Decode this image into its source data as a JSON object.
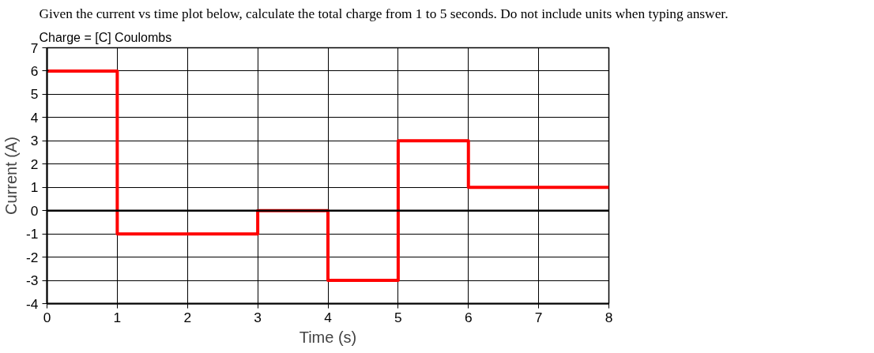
{
  "chart_data": {
    "type": "step",
    "title": "Given the current vs time plot below, calculate the total charge from 1 to 5 seconds. Do not include units when typing answer.",
    "subtitle": "Charge = [C] Coulombs",
    "xlabel": "Time (s)",
    "ylabel": "Current (A)",
    "x": [
      0,
      1,
      3,
      4,
      5,
      6,
      8
    ],
    "series": [
      {
        "color": "#ff0000",
        "values": [
          6,
          -1,
          0,
          -3,
          3,
          1,
          1
        ]
      }
    ],
    "xlim": [
      0,
      8
    ],
    "xticks": [
      0,
      1,
      2,
      3,
      4,
      5,
      6,
      7,
      8
    ],
    "ylim": [
      -4,
      7
    ],
    "yticks": [
      -4,
      -3,
      -2,
      -1,
      0,
      1,
      2,
      3,
      4,
      5,
      6,
      7
    ],
    "grid": true,
    "marker": "none",
    "line_style": "solid",
    "ref_lines": [
      {
        "axis": "y",
        "value": 0,
        "color": "#000000"
      }
    ]
  }
}
